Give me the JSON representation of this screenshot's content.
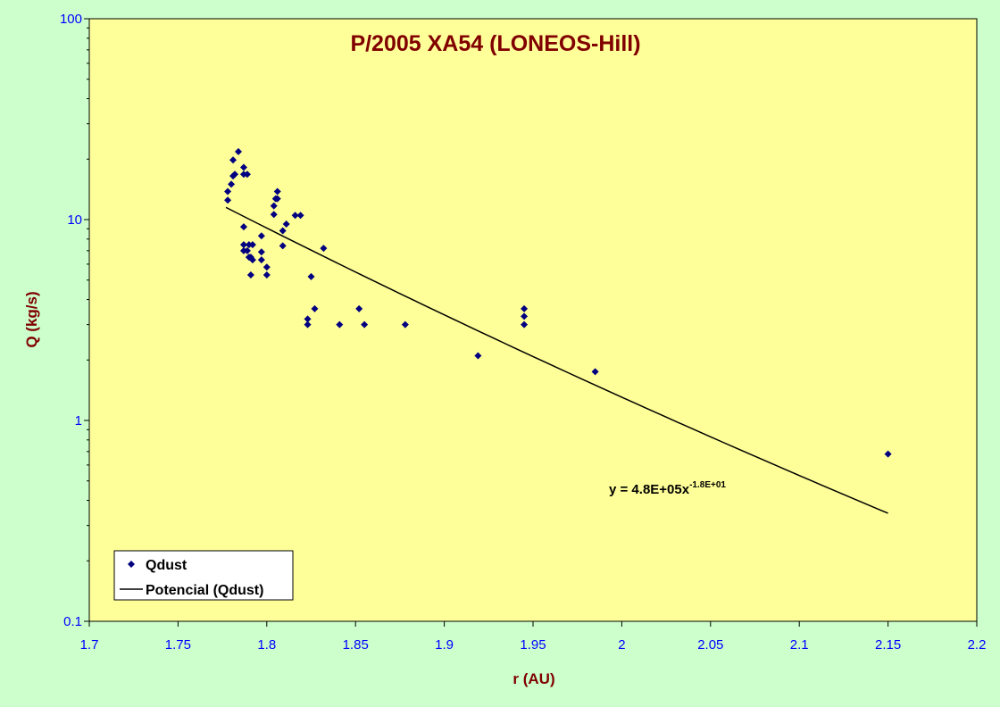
{
  "chart_data": {
    "type": "scatter",
    "title": "P/2005 XA54 (LONEOS-Hill)",
    "xlabel": "r (AU)",
    "ylabel": "Q (kg/s)",
    "xlim": [
      1.7,
      2.2
    ],
    "ylim": [
      0.1,
      100
    ],
    "yscale": "log",
    "x_ticks": [
      1.7,
      1.75,
      1.8,
      1.85,
      1.9,
      1.95,
      2.0,
      2.05,
      2.1,
      2.15,
      2.2
    ],
    "x_tick_labels": [
      "1.7",
      "1.75",
      "1.8",
      "1.85",
      "1.9",
      "1.95",
      "2",
      "2.05",
      "2.1",
      "2.15",
      "2.2"
    ],
    "y_ticks": [
      0.1,
      1,
      10,
      100
    ],
    "y_tick_labels": [
      "0.1",
      "1",
      "10",
      "100"
    ],
    "grid": false,
    "legend_position": "bottom-left",
    "series": [
      {
        "name": "Qdust",
        "kind": "points",
        "marker": "diamond",
        "color": "#000080",
        "points": [
          [
            1.778,
            12.5
          ],
          [
            1.778,
            13.8
          ],
          [
            1.78,
            15.0
          ],
          [
            1.781,
            16.5
          ],
          [
            1.781,
            19.8
          ],
          [
            1.782,
            16.8
          ],
          [
            1.784,
            21.8
          ],
          [
            1.787,
            18.2
          ],
          [
            1.787,
            16.8
          ],
          [
            1.789,
            16.8
          ],
          [
            1.787,
            9.2
          ],
          [
            1.787,
            7.5
          ],
          [
            1.787,
            7.0
          ],
          [
            1.789,
            7.0
          ],
          [
            1.79,
            7.5
          ],
          [
            1.79,
            6.5
          ],
          [
            1.792,
            7.5
          ],
          [
            1.791,
            6.5
          ],
          [
            1.792,
            6.3
          ],
          [
            1.791,
            5.3
          ],
          [
            1.797,
            8.3
          ],
          [
            1.797,
            6.9
          ],
          [
            1.797,
            6.3
          ],
          [
            1.8,
            5.8
          ],
          [
            1.8,
            5.3
          ],
          [
            1.804,
            10.6
          ],
          [
            1.804,
            11.7
          ],
          [
            1.805,
            12.7
          ],
          [
            1.806,
            13.8
          ],
          [
            1.806,
            12.7
          ],
          [
            1.809,
            8.8
          ],
          [
            1.809,
            7.4
          ],
          [
            1.811,
            9.5
          ],
          [
            1.816,
            10.5
          ],
          [
            1.819,
            10.5
          ],
          [
            1.823,
            3.2
          ],
          [
            1.823,
            3.0
          ],
          [
            1.825,
            5.2
          ],
          [
            1.827,
            3.6
          ],
          [
            1.832,
            7.2
          ],
          [
            1.841,
            3.0
          ],
          [
            1.852,
            3.6
          ],
          [
            1.855,
            3.0
          ],
          [
            1.878,
            3.0
          ],
          [
            1.919,
            2.1
          ],
          [
            1.945,
            3.6
          ],
          [
            1.945,
            3.3
          ],
          [
            1.945,
            3.0
          ],
          [
            1.985,
            1.75
          ],
          [
            2.15,
            0.68
          ]
        ]
      },
      {
        "name": "Potencial (Qdust)",
        "kind": "line",
        "color": "#000000",
        "points": [
          [
            1.777,
            11.5
          ],
          [
            2.15,
            0.345
          ]
        ]
      }
    ],
    "annotation": {
      "text": "y = 4.8E+05x",
      "superscript": "-1.8E+01"
    }
  }
}
